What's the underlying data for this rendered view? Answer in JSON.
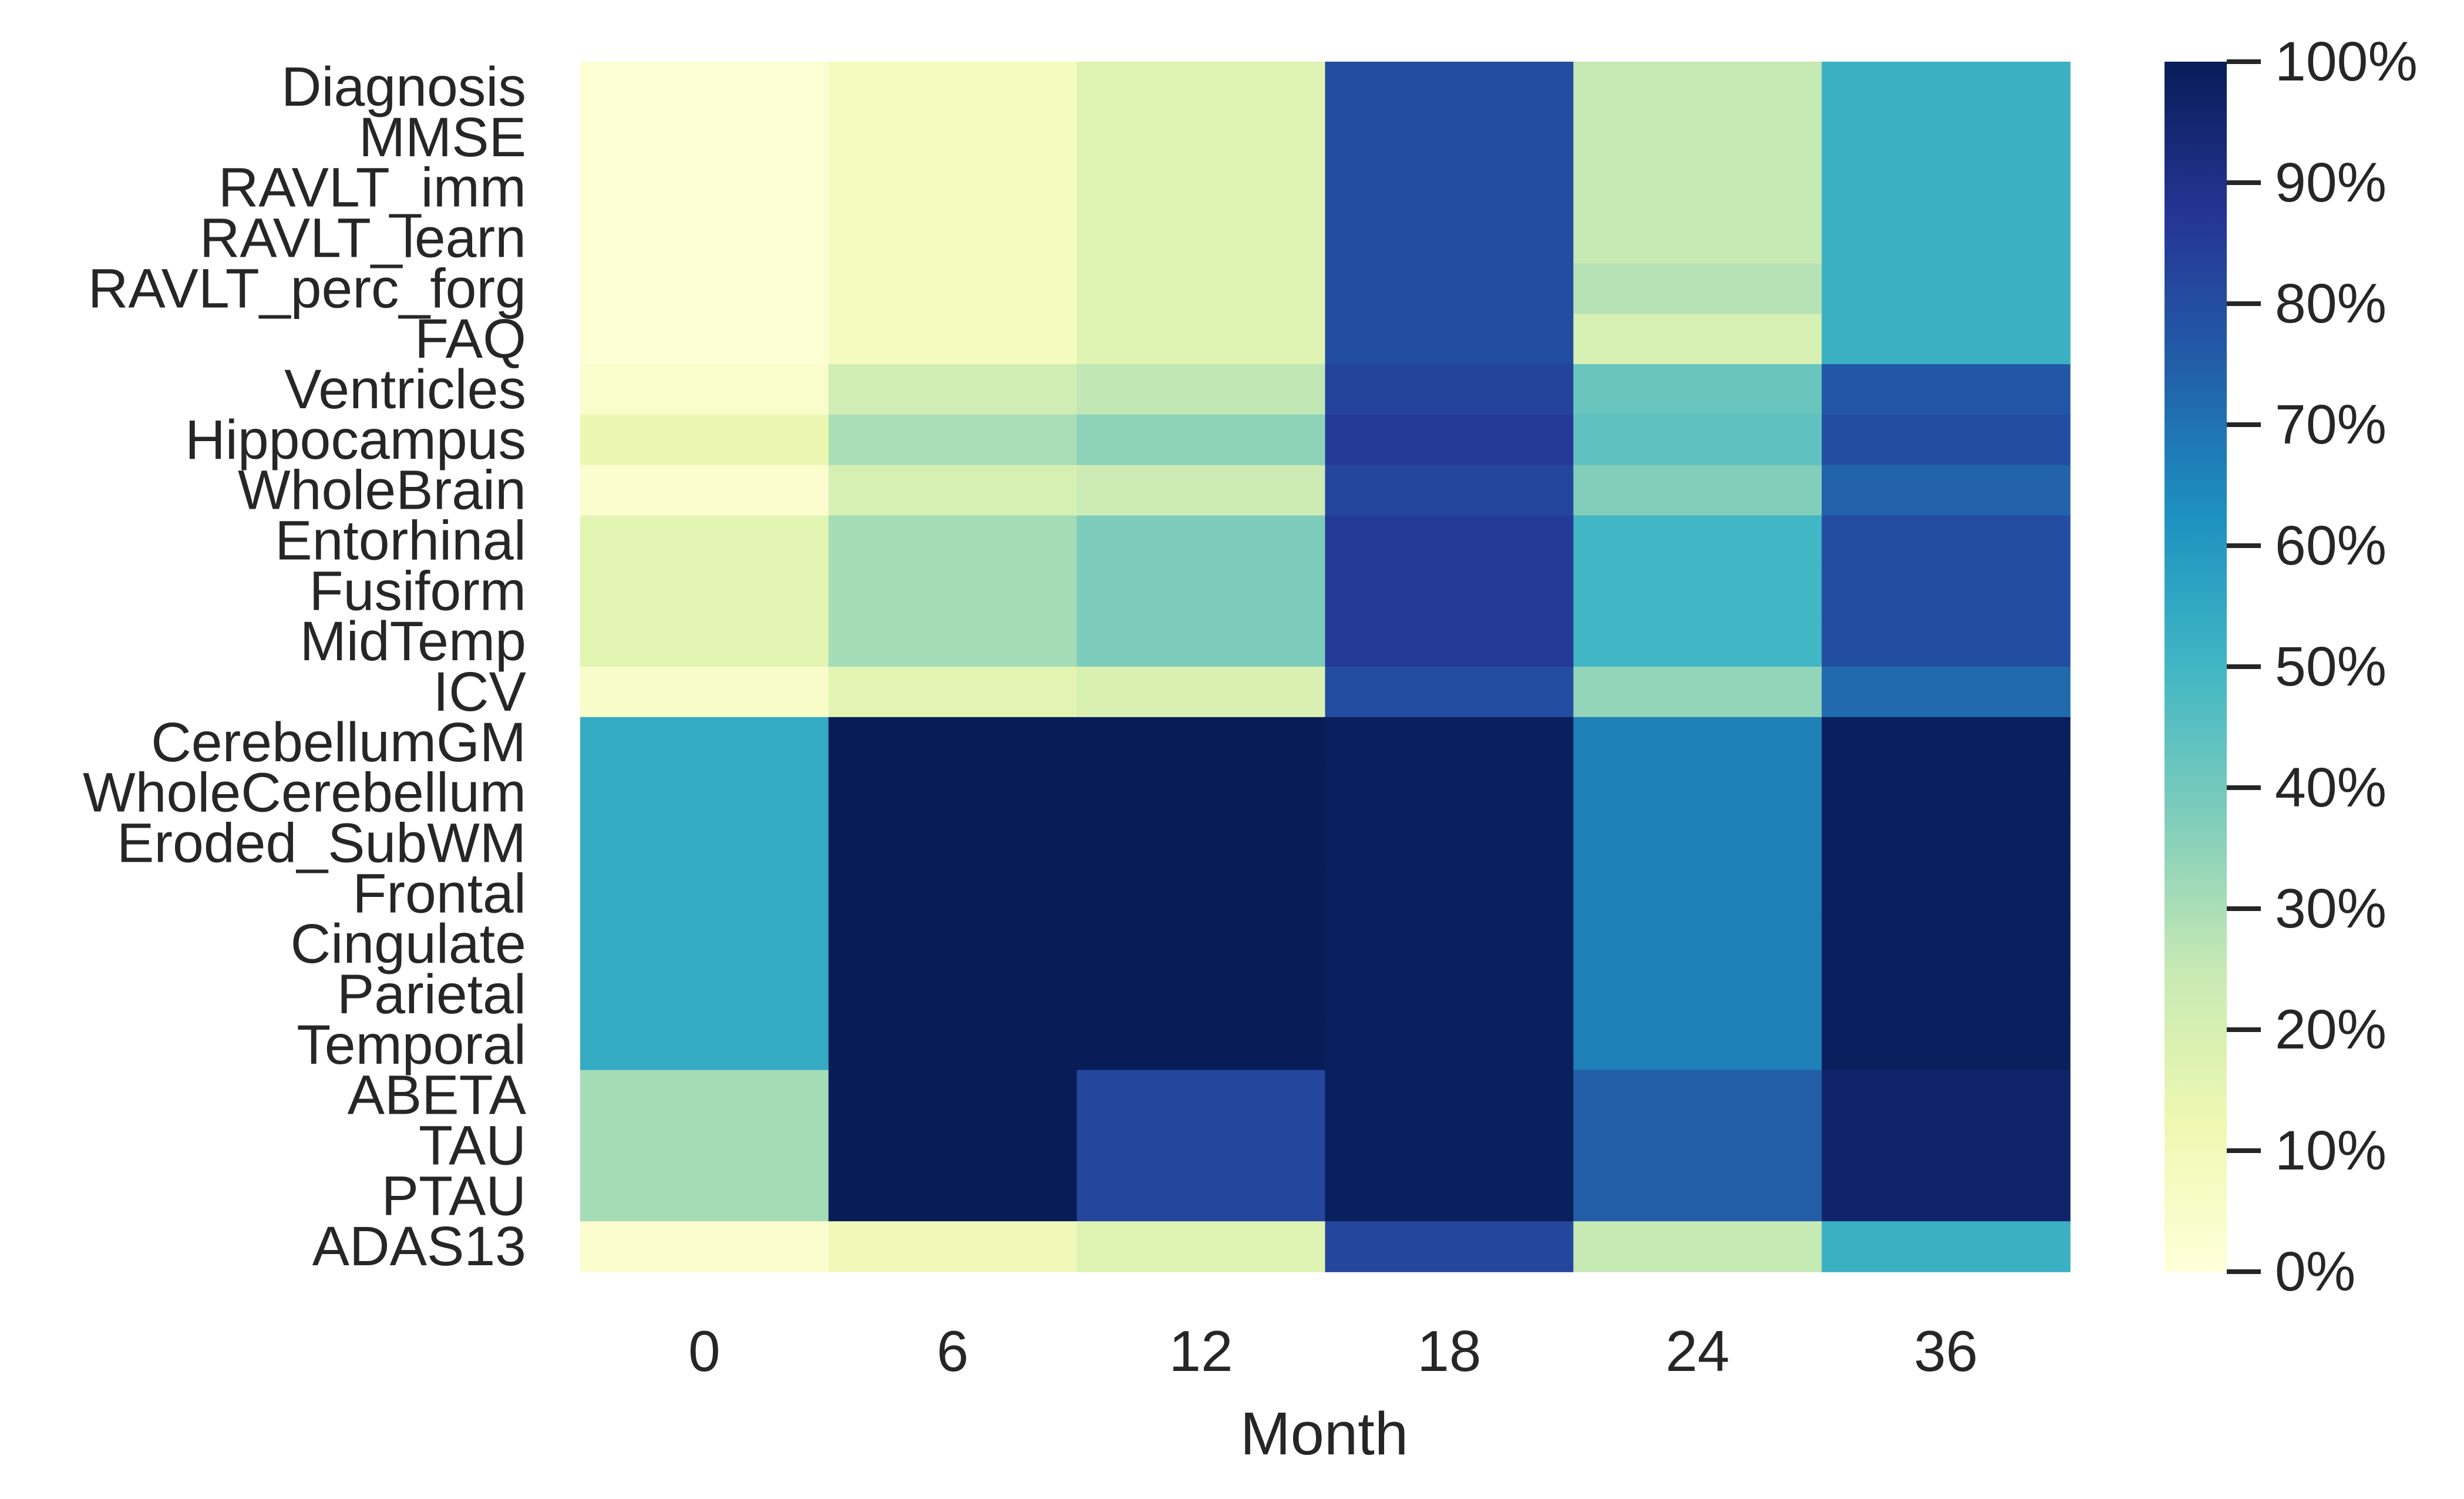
{
  "chart_data": {
    "type": "heatmap",
    "title": "",
    "xlabel": "Month",
    "ylabel": "",
    "colormap": "YlGnBu",
    "x": [
      "0",
      "6",
      "12",
      "18",
      "24",
      "36"
    ],
    "y": [
      "Diagnosis",
      "MMSE",
      "RAVLT_imm",
      "RAVLT_learn",
      "RAVLT_perc_forg",
      "FAQ",
      "Ventricles",
      "Hippocampus",
      "WholeBrain",
      "Entorhinal",
      "Fusiform",
      "MidTemp",
      "ICV",
      "CerebellumGM",
      "WholeCerebellum",
      "Eroded_SubWM",
      "Frontal",
      "Cingulate",
      "Parietal",
      "Temporal",
      "ABETA",
      "TAU",
      "PTAU",
      "ADAS13"
    ],
    "values": [
      [
        2,
        8,
        17,
        80,
        25,
        52
      ],
      [
        2,
        8,
        17,
        80,
        25,
        52
      ],
      [
        2,
        8,
        17,
        80,
        25,
        52
      ],
      [
        2,
        8,
        17,
        80,
        25,
        52
      ],
      [
        2,
        8,
        17,
        80,
        28,
        52
      ],
      [
        2,
        8,
        17,
        80,
        20,
        52
      ],
      [
        4,
        22,
        26,
        83,
        42,
        77
      ],
      [
        13,
        30,
        35,
        86,
        44,
        80
      ],
      [
        3,
        20,
        23,
        82,
        37,
        74
      ],
      [
        16,
        31,
        38,
        86,
        50,
        80
      ],
      [
        16,
        31,
        38,
        86,
        50,
        80
      ],
      [
        16,
        31,
        38,
        86,
        50,
        80
      ],
      [
        5,
        16,
        19,
        80,
        34,
        72
      ],
      [
        54,
        100,
        100,
        99,
        67,
        99
      ],
      [
        54,
        100,
        100,
        99,
        67,
        99
      ],
      [
        54,
        100,
        100,
        99,
        67,
        99
      ],
      [
        54,
        100,
        100,
        99,
        67,
        99
      ],
      [
        54,
        100,
        100,
        99,
        67,
        99
      ],
      [
        54,
        100,
        100,
        99,
        67,
        99
      ],
      [
        54,
        100,
        100,
        99,
        67,
        99
      ],
      [
        31,
        100,
        82,
        99,
        75,
        96
      ],
      [
        31,
        100,
        82,
        99,
        75,
        96
      ],
      [
        31,
        100,
        82,
        99,
        75,
        96
      ],
      [
        3,
        10,
        17,
        82,
        25,
        52
      ]
    ],
    "colorbar": {
      "ticks": [
        0,
        10,
        20,
        30,
        40,
        50,
        60,
        70,
        80,
        90,
        100
      ],
      "tick_labels": [
        "0%",
        "10%",
        "20%",
        "30%",
        "40%",
        "50%",
        "60%",
        "70%",
        "80%",
        "90%",
        "100%"
      ],
      "range": [
        0,
        100
      ]
    },
    "colors": [
      "#ffffd9",
      "#edf8b1",
      "#c7e9b4",
      "#7fcdbb",
      "#41b6c4",
      "#1d91c0",
      "#225ea8",
      "#253494",
      "#081d58"
    ]
  }
}
